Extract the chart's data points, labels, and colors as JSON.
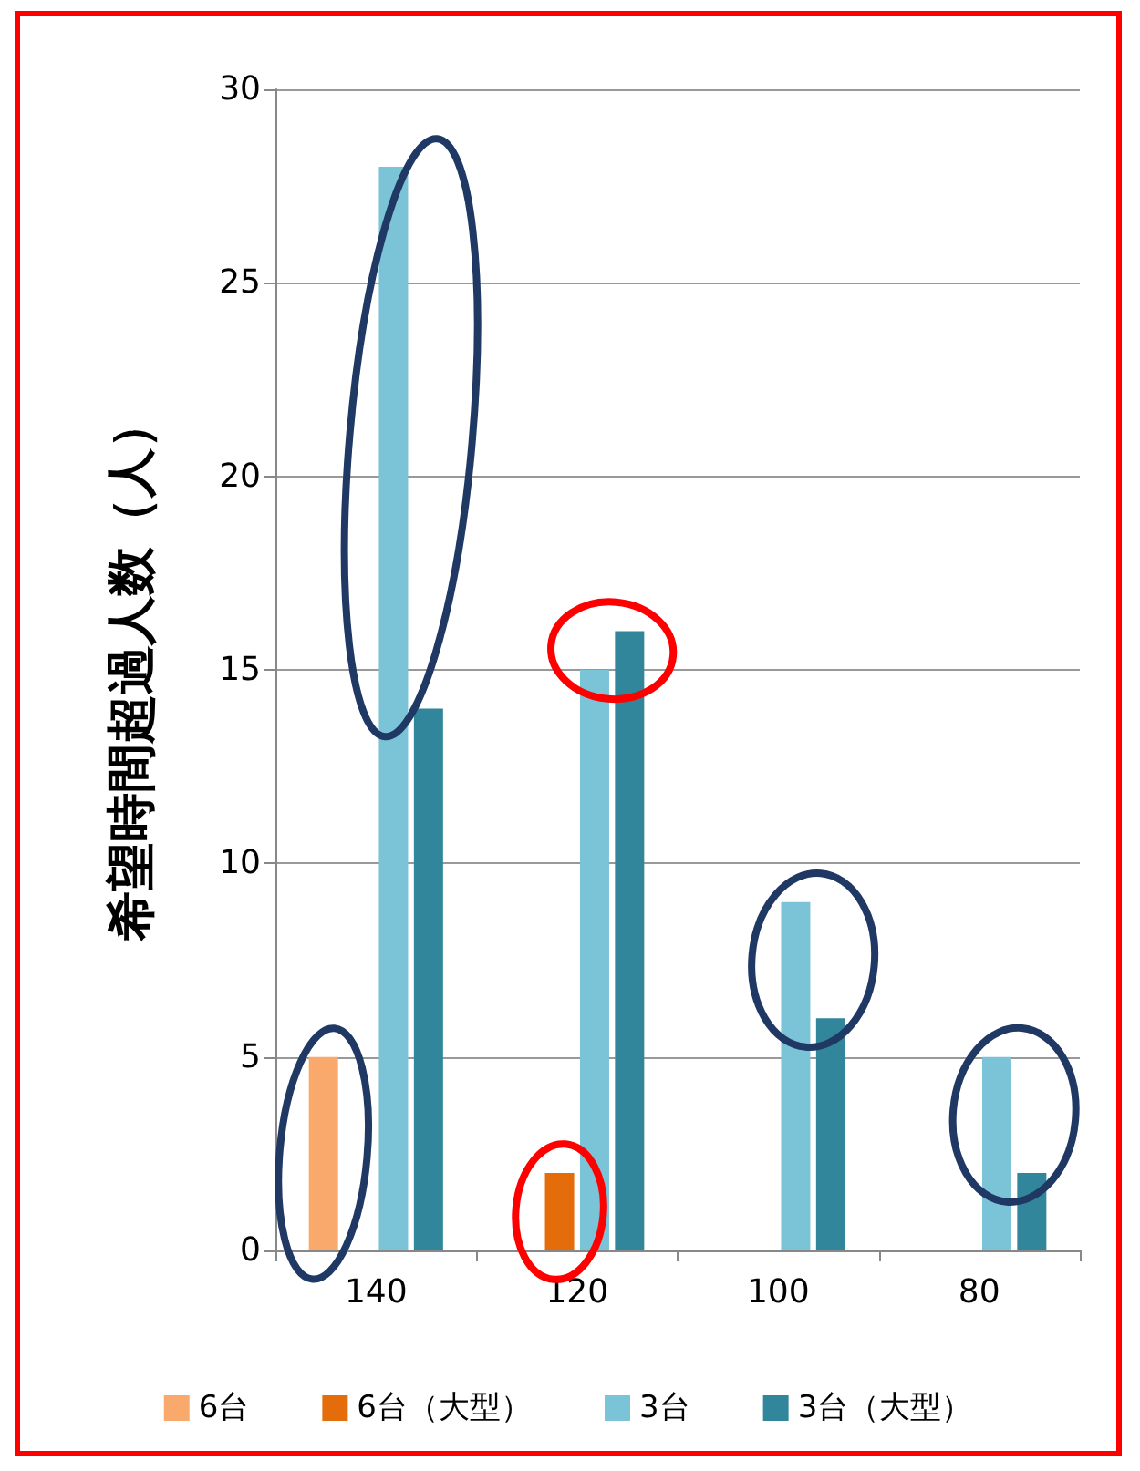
{
  "chart_data": {
    "type": "bar",
    "ylabel": "希望時間超過人数（人）",
    "categories": [
      "140",
      "120",
      "100",
      "80"
    ],
    "series": [
      {
        "name": "6台",
        "color": "#f9a96b",
        "values": [
          5,
          null,
          null,
          null
        ]
      },
      {
        "name": "6台（大型）",
        "color": "#e46c0a",
        "values": [
          null,
          2,
          null,
          null
        ]
      },
      {
        "name": "3台",
        "color": "#7bc3d6",
        "values": [
          28,
          15,
          9,
          5
        ]
      },
      {
        "name": "3台（大型）",
        "color": "#31869b",
        "values": [
          14,
          16,
          6,
          2
        ]
      }
    ],
    "ylim": [
      0,
      30
    ],
    "yticks": [
      0,
      5,
      10,
      15,
      20,
      25,
      30
    ],
    "grid": "y",
    "legend": "bottom"
  }
}
